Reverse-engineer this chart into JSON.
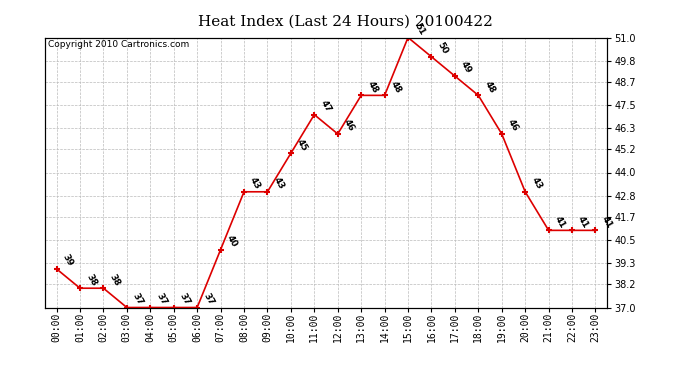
{
  "title": "Heat Index (Last 24 Hours) 20100422",
  "copyright": "Copyright 2010 Cartronics.com",
  "x_labels": [
    "00:00",
    "01:00",
    "02:00",
    "03:00",
    "04:00",
    "05:00",
    "06:00",
    "07:00",
    "08:00",
    "09:00",
    "10:00",
    "11:00",
    "12:00",
    "13:00",
    "14:00",
    "15:00",
    "16:00",
    "17:00",
    "18:00",
    "19:00",
    "20:00",
    "21:00",
    "22:00",
    "23:00"
  ],
  "y_values": [
    39,
    38,
    38,
    37,
    37,
    37,
    37,
    40,
    43,
    43,
    45,
    47,
    46,
    48,
    48,
    51,
    50,
    49,
    48,
    46,
    43,
    41,
    41,
    41
  ],
  "ylim_min": 37.0,
  "ylim_max": 51.0,
  "y_ticks": [
    37.0,
    38.2,
    39.3,
    40.5,
    41.7,
    42.8,
    44.0,
    45.2,
    46.3,
    47.5,
    48.7,
    49.8,
    51.0
  ],
  "line_color": "#dd0000",
  "marker_color": "#dd0000",
  "bg_color": "#ffffff",
  "grid_color": "#bbbbbb",
  "title_fontsize": 11,
  "copyright_fontsize": 6.5,
  "tick_fontsize": 7,
  "annot_fontsize": 6.5
}
